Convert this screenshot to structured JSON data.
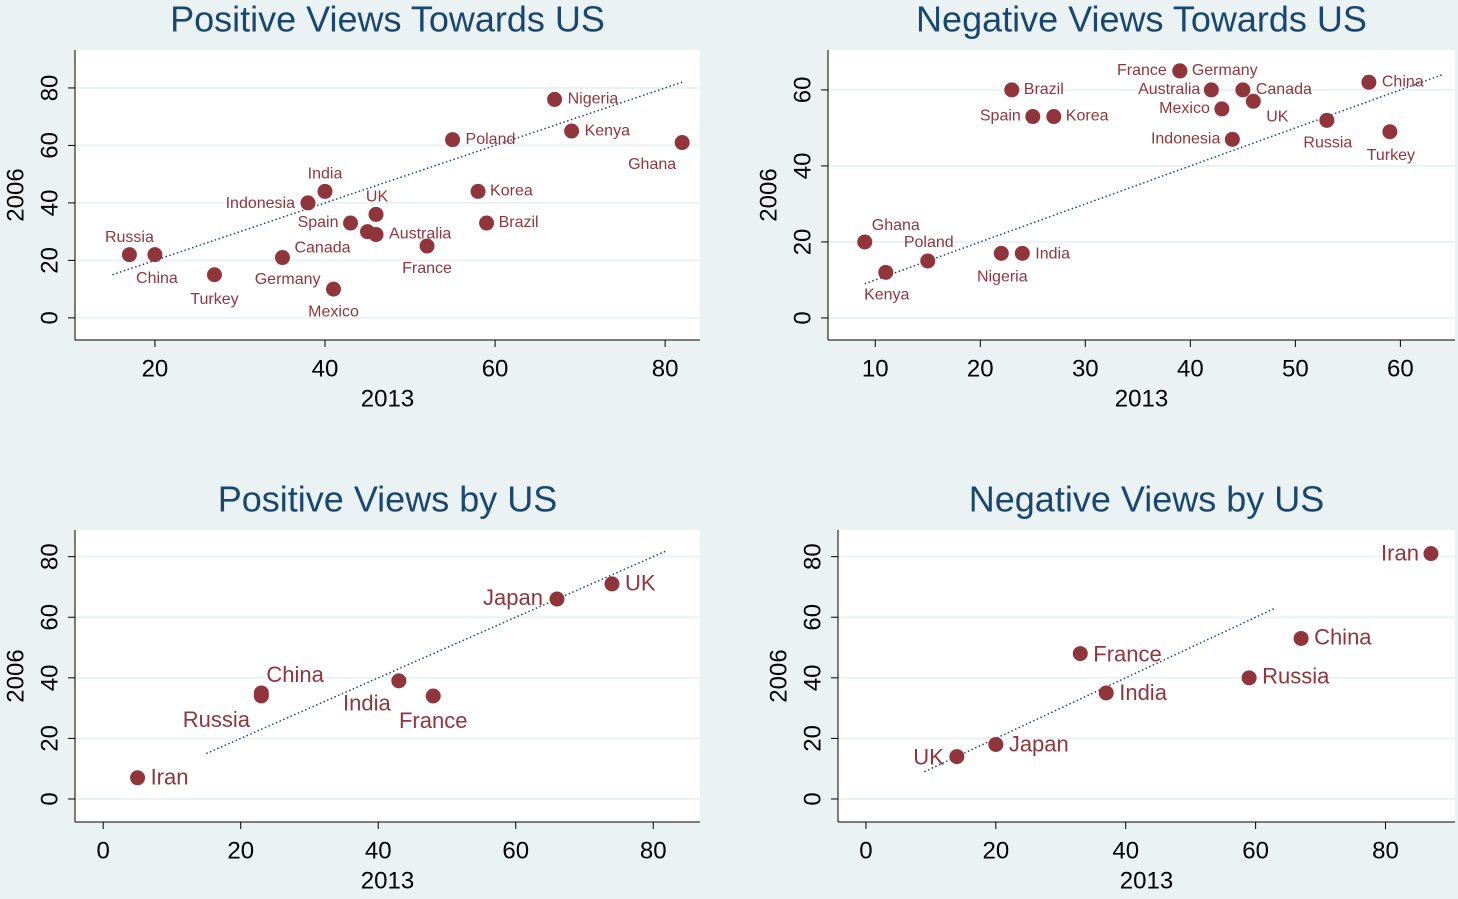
{
  "chart_data": [
    {
      "type": "scatter",
      "title": "Positive Views Towards US",
      "x_label": "2013",
      "y_label": "2006",
      "point_labels": [
        "Russia",
        "China",
        "Turkey",
        "Canada",
        "Germany",
        "Mexico",
        "Indonesia",
        "India",
        "Spain",
        "UK",
        "Australia",
        "France",
        "Poland",
        "Korea",
        "Brazil",
        "Nigeria",
        "Kenya",
        "Ghana"
      ],
      "x": [
        17,
        20,
        27,
        35,
        45,
        41,
        38,
        40,
        43,
        46,
        46,
        52,
        55,
        58,
        59,
        67,
        69,
        82
      ],
      "values": [
        22,
        22,
        15,
        21,
        30,
        10,
        40,
        44,
        33,
        36,
        29,
        25,
        62,
        44,
        33,
        76,
        65,
        61
      ],
      "color": "#90353b",
      "reference_line": {
        "x": [
          15,
          82
        ],
        "values": [
          15,
          82
        ],
        "color": "#1a476f"
      },
      "xlim": [
        10.6,
        84.1
      ],
      "ylim": [
        -7.7,
        93.2
      ],
      "xticks": [
        20,
        40,
        60,
        80
      ],
      "yticks": [
        0,
        20,
        40,
        60,
        80
      ],
      "grid": true
    },
    {
      "type": "scatter",
      "title": "Negative Views Towards US",
      "x_label": "2013",
      "y_label": "2006",
      "point_labels": [
        "Ghana",
        "Kenya",
        "Poland",
        "Nigeria",
        "India",
        "Brazil",
        "Spain",
        "Korea",
        "France",
        "Germany",
        "Australia",
        "Canada",
        "Mexico",
        "UK",
        "Indonesia",
        "Russia",
        "China",
        "Turkey"
      ],
      "x": [
        9,
        11,
        15,
        22,
        24,
        23,
        25,
        27,
        39,
        39,
        42,
        45,
        43,
        46,
        44,
        53,
        57,
        59
      ],
      "values": [
        20,
        12,
        15,
        17,
        17,
        60,
        53,
        53,
        65,
        65,
        60,
        60,
        55,
        57,
        47,
        52,
        62,
        49
      ],
      "color": "#90353b",
      "reference_line": {
        "x": [
          9,
          64
        ],
        "values": [
          9,
          64
        ],
        "color": "#1a476f"
      },
      "xlim": [
        5.5,
        65.2
      ],
      "ylim": [
        -5.8,
        70.5
      ],
      "xticks": [
        10,
        20,
        30,
        40,
        50,
        60
      ],
      "yticks": [
        0,
        20,
        40,
        60
      ],
      "grid": true
    },
    {
      "type": "scatter",
      "title": "Positive Views by US",
      "x_label": "2013",
      "y_label": "2006",
      "point_labels": [
        "Iran",
        "Russia",
        "China",
        "India",
        "France",
        "Japan",
        "UK"
      ],
      "x": [
        5,
        23,
        23,
        43,
        48,
        66,
        74
      ],
      "values": [
        7,
        34,
        35,
        39,
        34,
        66,
        71
      ],
      "color": "#90353b",
      "reference_line": {
        "x": [
          15,
          82
        ],
        "values": [
          15,
          82
        ],
        "color": "#1a476f"
      },
      "xlim": [
        -4.1,
        86.8
      ],
      "ylim": [
        -7.6,
        88.8
      ],
      "xticks": [
        0,
        20,
        40,
        60,
        80
      ],
      "yticks": [
        0,
        20,
        40,
        60,
        80
      ],
      "grid": true
    },
    {
      "type": "scatter",
      "title": "Negative Views by US",
      "x_label": "2013",
      "y_label": "2006",
      "point_labels": [
        "UK",
        "Japan",
        "France",
        "India",
        "Russia",
        "China",
        "Iran"
      ],
      "x": [
        14,
        20,
        33,
        37,
        59,
        67,
        87
      ],
      "values": [
        14,
        18,
        48,
        35,
        40,
        53,
        81
      ],
      "color": "#90353b",
      "reference_line": {
        "x": [
          9,
          63
        ],
        "values": [
          9,
          63
        ],
        "color": "#1a476f"
      },
      "xlim": [
        -4.3,
        90.7
      ],
      "ylim": [
        -7.6,
        88.8
      ],
      "xticks": [
        0,
        20,
        40,
        60,
        80
      ],
      "yticks": [
        0,
        20,
        40,
        60,
        80
      ],
      "grid": true
    }
  ]
}
